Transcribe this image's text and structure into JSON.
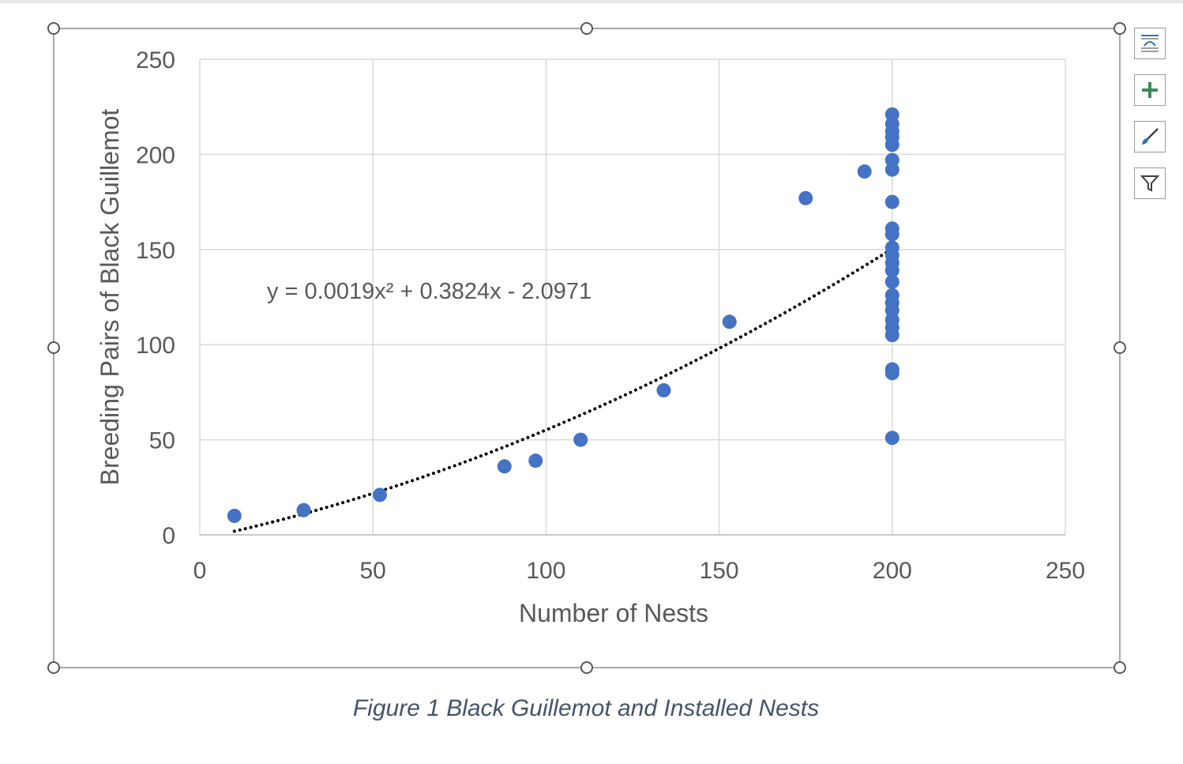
{
  "caption": "Figure 1 Black Guillemot and Installed Nests",
  "side_toolbar": {
    "buttons": [
      {
        "name": "layout-options-button",
        "icon": "layout-options-icon"
      },
      {
        "name": "chart-elements-button",
        "icon": "plus-icon"
      },
      {
        "name": "chart-styles-button",
        "icon": "paintbrush-icon"
      },
      {
        "name": "chart-filters-button",
        "icon": "filter-icon"
      }
    ]
  },
  "colors": {
    "marker": "#4472c4",
    "trendline": "#000000",
    "grid": "#d9d9d9",
    "caption": "#44546a",
    "plus": "#3a8a5c"
  },
  "chart_data": {
    "type": "scatter",
    "title": "",
    "xlabel": "Number of Nests",
    "ylabel": "Breeding Pairs of Black Guillemot",
    "xlim": [
      0,
      250
    ],
    "ylim": [
      0,
      250
    ],
    "x_ticks": [
      0,
      50,
      100,
      150,
      200,
      250
    ],
    "y_ticks": [
      0,
      50,
      100,
      150,
      200,
      250
    ],
    "grid": true,
    "legend": "none",
    "points": [
      [
        10,
        10
      ],
      [
        30,
        13
      ],
      [
        52,
        21
      ],
      [
        88,
        36
      ],
      [
        97,
        39
      ],
      [
        110,
        50
      ],
      [
        134,
        76
      ],
      [
        153,
        112
      ],
      [
        175,
        177
      ],
      [
        192,
        191
      ],
      [
        200,
        221
      ],
      [
        200,
        216
      ],
      [
        200,
        212
      ],
      [
        200,
        209
      ],
      [
        200,
        205
      ],
      [
        200,
        197
      ],
      [
        200,
        192
      ],
      [
        200,
        175
      ],
      [
        200,
        161
      ],
      [
        200,
        158
      ],
      [
        200,
        151
      ],
      [
        200,
        147
      ],
      [
        200,
        143
      ],
      [
        200,
        139
      ],
      [
        200,
        133
      ],
      [
        200,
        126
      ],
      [
        200,
        122
      ],
      [
        200,
        118
      ],
      [
        200,
        113
      ],
      [
        200,
        109
      ],
      [
        200,
        105
      ],
      [
        200,
        87
      ],
      [
        200,
        85
      ],
      [
        200,
        51
      ]
    ],
    "trendline": {
      "type": "polynomial",
      "coefficients": [
        0.0019,
        0.3824,
        -2.0971
      ],
      "x_range": [
        10,
        200
      ],
      "equation_label": "y = 0.0019x² + 0.3824x - 2.0971"
    }
  }
}
